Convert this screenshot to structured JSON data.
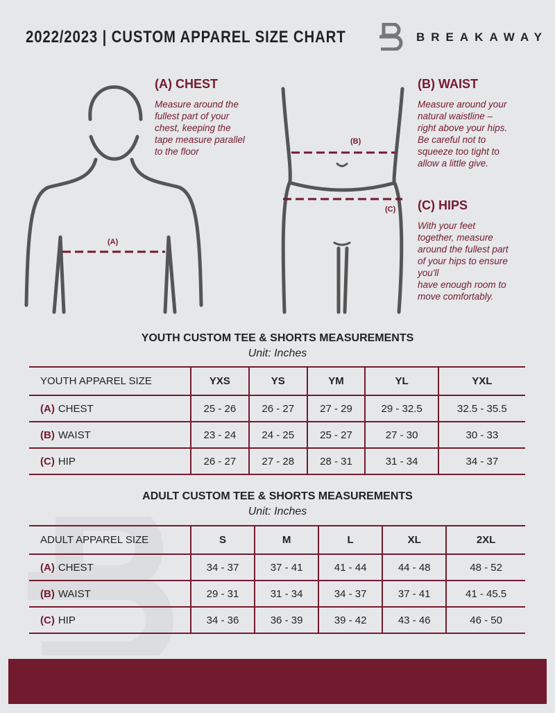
{
  "header": {
    "title": "2022/2023 | CUSTOM APPAREL SIZE CHART",
    "brand": "BREAKAWAY"
  },
  "chest": {
    "heading": "(A) CHEST",
    "lines": [
      "Measure around the",
      "fullest part of your",
      "chest, keeping the",
      "tape measure parallel",
      "to the floor"
    ],
    "marker": "(A)"
  },
  "waist": {
    "heading": "(B) WAIST",
    "lines": [
      "Measure around your",
      "natural waistline –",
      "right above your hips.",
      "Be careful not to",
      "squeeze too tight to",
      "allow a little give."
    ],
    "marker": "(B)"
  },
  "hips": {
    "heading": "(C) HIPS",
    "lines": [
      "With your feet",
      "together, measure",
      "around the fullest part",
      "of your hips to ensure",
      "you'll",
      "have enough room to",
      "move comfortably."
    ],
    "marker": "(C)"
  },
  "youth": {
    "title": "YOUTH CUSTOM TEE & SHORTS MEASUREMENTS",
    "unit": "Unit: Inches",
    "header": [
      "YOUTH APPAREL SIZE",
      "YXS",
      "YS",
      "YM",
      "YL",
      "YXL"
    ],
    "rows": [
      {
        "letter": "(A)",
        "label": "CHEST",
        "values": [
          "25 - 26",
          "26 - 27",
          "27 - 29",
          "29 - 32.5",
          "32.5 - 35.5"
        ]
      },
      {
        "letter": "(B)",
        "label": "WAIST",
        "values": [
          "23 - 24",
          "24 - 25",
          "25 - 27",
          "27 - 30",
          "30 - 33"
        ]
      },
      {
        "letter": "(C)",
        "label": "HIP",
        "values": [
          "26 - 27",
          "27 - 28",
          "28 - 31",
          "31 - 34",
          "34 - 37"
        ]
      }
    ]
  },
  "adult": {
    "title": "ADULT CUSTOM TEE & SHORTS MEASUREMENTS",
    "unit": "Unit: Inches",
    "header": [
      "ADULT APPAREL SIZE",
      "S",
      "M",
      "L",
      "XL",
      "2XL"
    ],
    "rows": [
      {
        "letter": "(A)",
        "label": "CHEST",
        "values": [
          "34 - 37",
          "37 - 41",
          "41 - 44",
          "44 - 48",
          "48 - 52"
        ]
      },
      {
        "letter": "(B)",
        "label": "WAIST",
        "values": [
          "29 - 31",
          "31 - 34",
          "34 - 37",
          "37 - 41",
          "41 - 45.5"
        ]
      },
      {
        "letter": "(C)",
        "label": "HIP",
        "values": [
          "34 - 36",
          "36 - 39",
          "39 - 42",
          "43 - 46",
          "46 - 50"
        ]
      }
    ]
  },
  "colors": {
    "accent": "#741a2e",
    "background": "#e6e7e9",
    "figure": "#555555"
  }
}
